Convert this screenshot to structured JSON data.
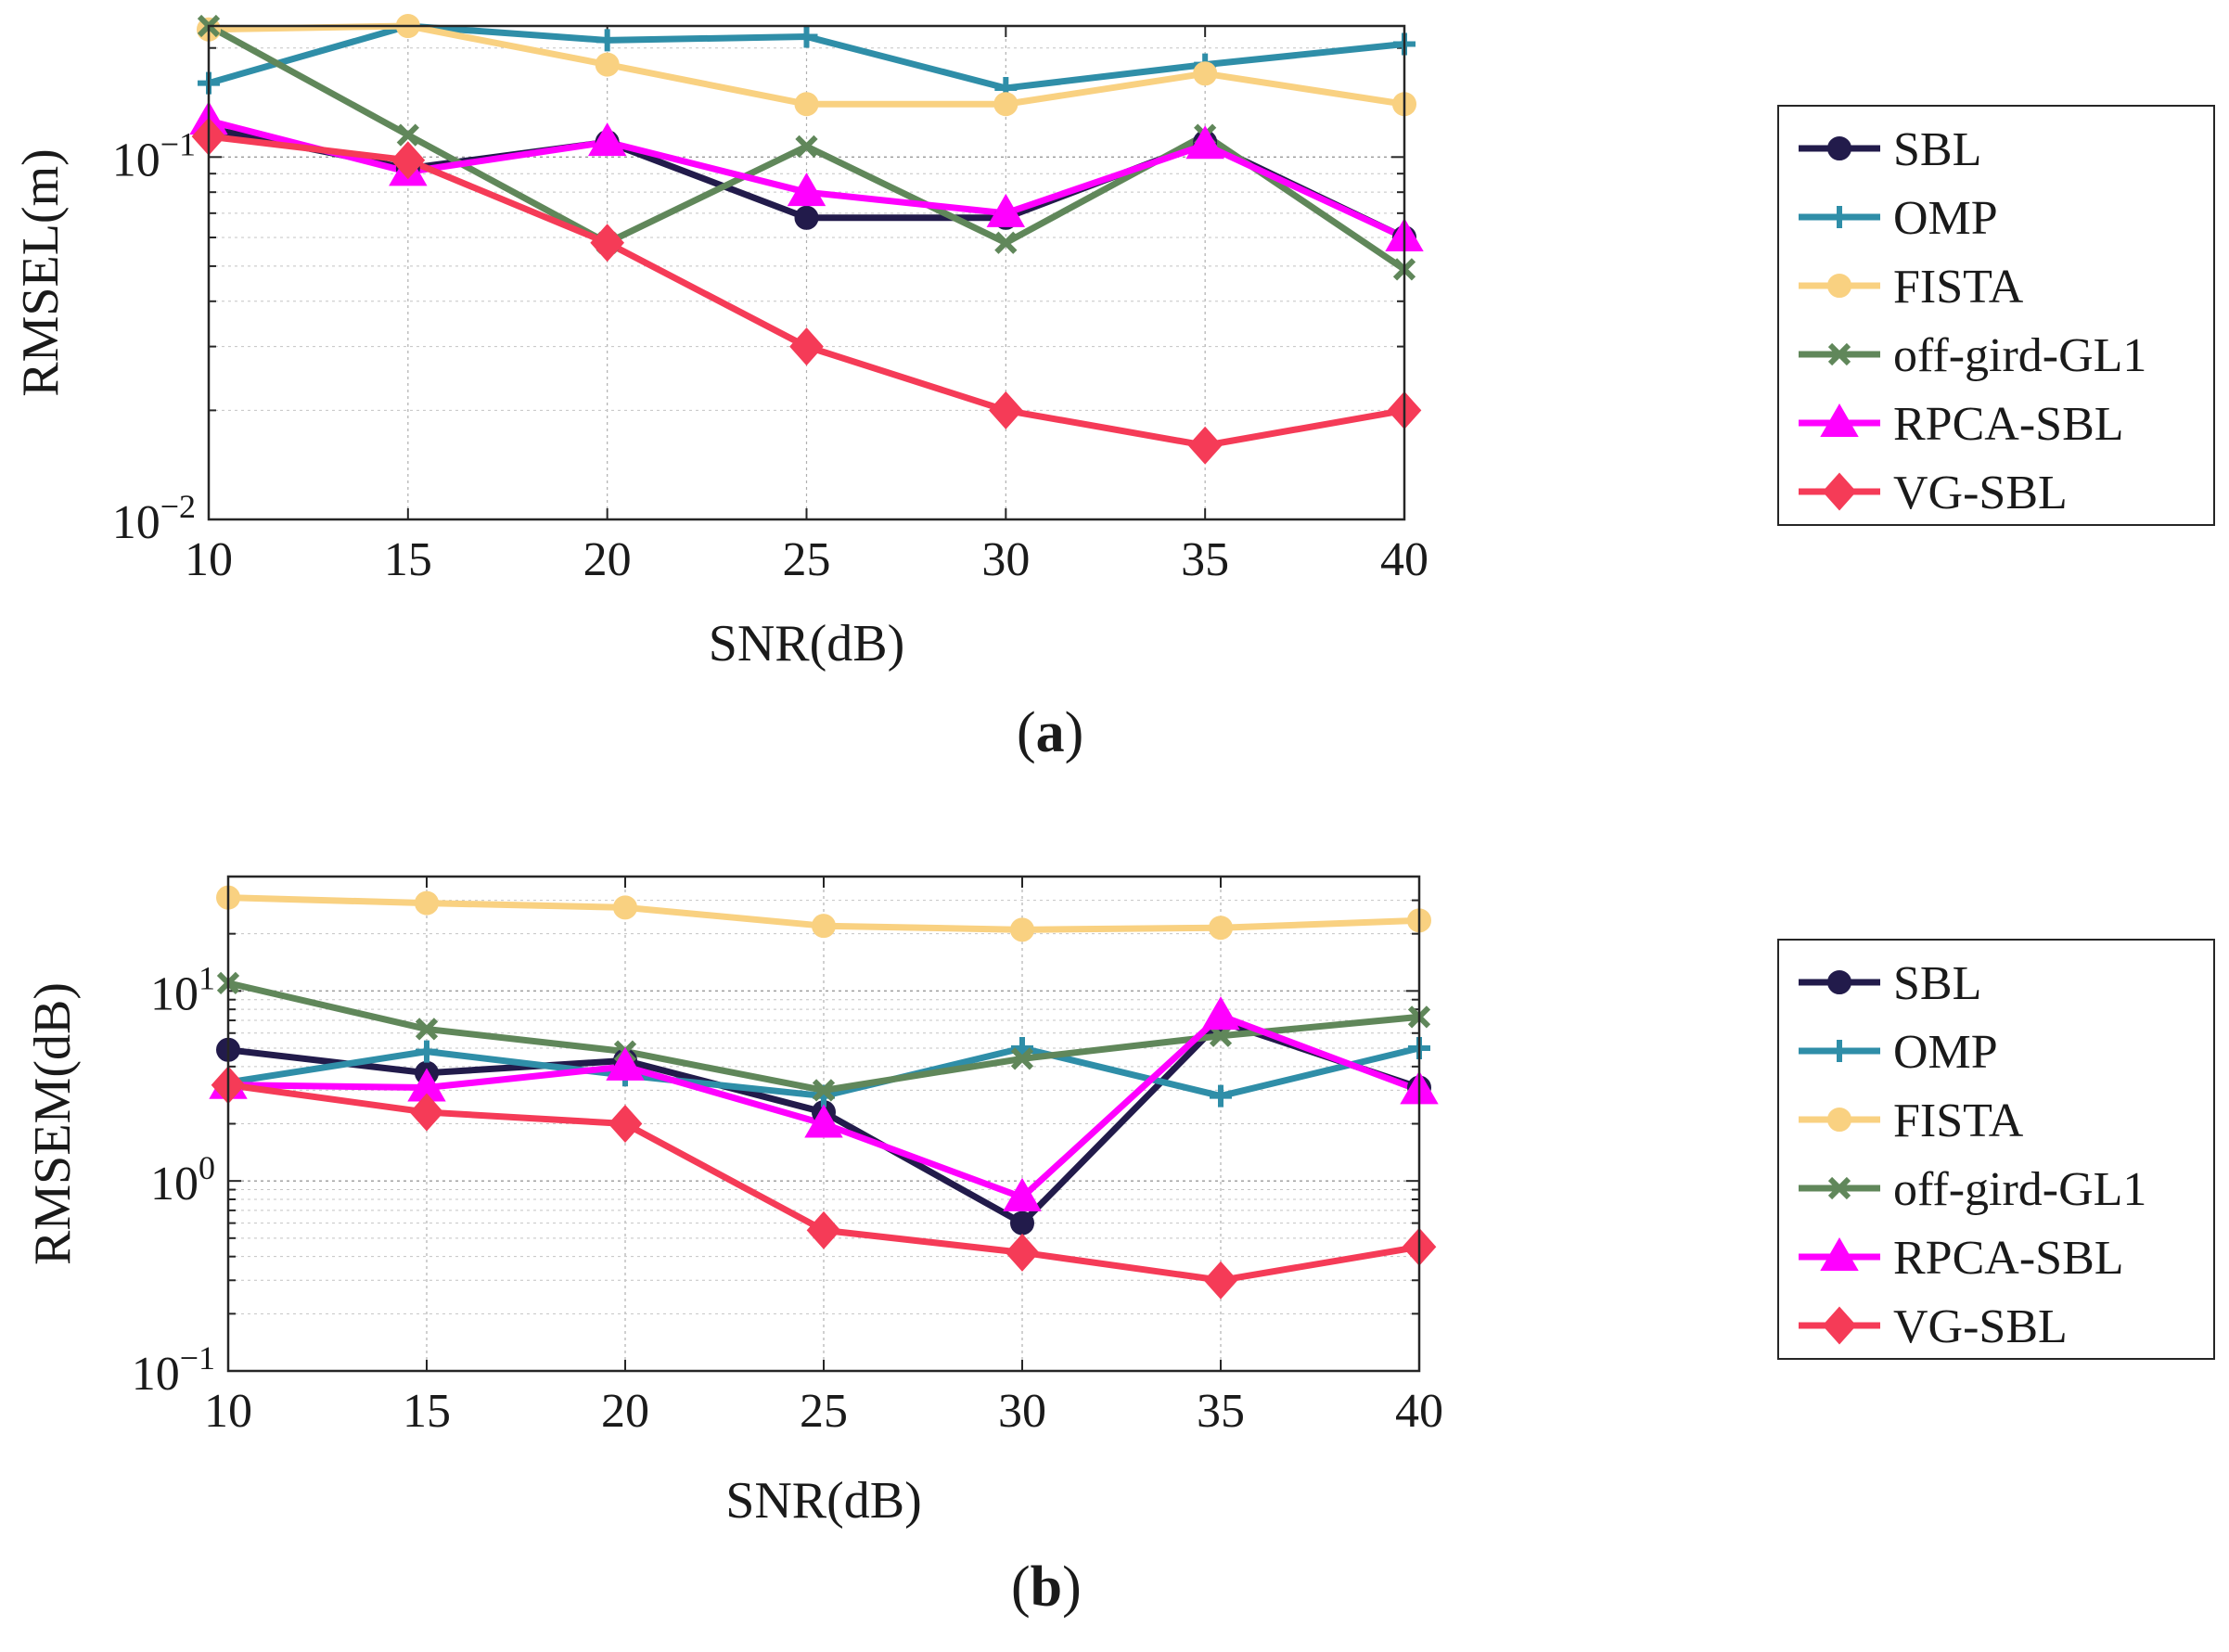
{
  "chart_data": [
    {
      "type": "line",
      "panel_label": "a",
      "xlabel": "SNR(dB)",
      "ylabel": "RMSEL(m)",
      "x": [
        10,
        15,
        20,
        25,
        30,
        35,
        40
      ],
      "xlim": [
        10,
        40
      ],
      "ylim": [
        0.01,
        0.23
      ],
      "yscale": "log",
      "ytick_mantissa": "10",
      "yticks": [
        {
          "value": 0.01,
          "exp": "−2"
        },
        {
          "value": 0.1,
          "exp": "−1"
        }
      ],
      "grid": true,
      "legend_position": "right",
      "series": [
        {
          "name": "SBL",
          "color": "#221b4b",
          "marker": "circle",
          "values": [
            0.12,
            0.093,
            0.11,
            0.068,
            0.068,
            0.11,
            0.06
          ]
        },
        {
          "name": "OMP",
          "color": "#2f8ea8",
          "marker": "plus",
          "values": [
            0.16,
            0.23,
            0.21,
            0.215,
            0.155,
            0.18,
            0.205
          ]
        },
        {
          "name": "FISTA",
          "color": "#f9d181",
          "marker": "circle",
          "values": [
            0.225,
            0.23,
            0.18,
            0.14,
            0.14,
            0.17,
            0.14
          ]
        },
        {
          "name": "off-gird-GL1",
          "color": "#60875a",
          "marker": "x",
          "values": [
            0.23,
            0.115,
            0.058,
            0.107,
            0.058,
            0.115,
            0.049
          ]
        },
        {
          "name": "RPCA-SBL",
          "color": "#ff00ff",
          "marker": "triangle",
          "values": [
            0.126,
            0.091,
            0.11,
            0.08,
            0.07,
            0.108,
            0.06
          ]
        },
        {
          "name": "VG-SBL",
          "color": "#f53b57",
          "marker": "diamond",
          "values": [
            0.114,
            0.098,
            0.058,
            0.03,
            0.02,
            0.016,
            0.02
          ]
        }
      ]
    },
    {
      "type": "line",
      "panel_label": "b",
      "xlabel": "SNR(dB)",
      "ylabel": "RMSEM(dB)",
      "x": [
        10,
        15,
        20,
        25,
        30,
        35,
        40
      ],
      "xlim": [
        10,
        40
      ],
      "ylim": [
        0.1,
        40
      ],
      "yscale": "log",
      "ytick_mantissa": "10",
      "yticks": [
        {
          "value": 0.1,
          "exp": "−1"
        },
        {
          "value": 1,
          "exp": "0"
        },
        {
          "value": 10,
          "exp": "1"
        }
      ],
      "grid": true,
      "legend_position": "right",
      "series": [
        {
          "name": "SBL",
          "color": "#221b4b",
          "marker": "circle",
          "values": [
            4.9,
            3.7,
            4.3,
            2.3,
            0.6,
            6.9,
            3.1
          ]
        },
        {
          "name": "OMP",
          "color": "#2f8ea8",
          "marker": "plus",
          "values": [
            3.3,
            4.8,
            3.6,
            2.8,
            5.0,
            2.8,
            5.0
          ]
        },
        {
          "name": "FISTA",
          "color": "#f9d181",
          "marker": "circle",
          "values": [
            31,
            29,
            27.5,
            22,
            21,
            21.5,
            23.5
          ]
        },
        {
          "name": "off-gird-GL1",
          "color": "#60875a",
          "marker": "x",
          "values": [
            11,
            6.3,
            4.8,
            3.0,
            4.4,
            5.8,
            7.3
          ]
        },
        {
          "name": "RPCA-SBL",
          "color": "#ff00ff",
          "marker": "triangle",
          "values": [
            3.2,
            3.1,
            4.0,
            2.0,
            0.82,
            7.4,
            3.0
          ]
        },
        {
          "name": "VG-SBL",
          "color": "#f53b57",
          "marker": "diamond",
          "values": [
            3.2,
            2.3,
            2.0,
            0.55,
            0.42,
            0.3,
            0.45
          ]
        }
      ]
    }
  ]
}
